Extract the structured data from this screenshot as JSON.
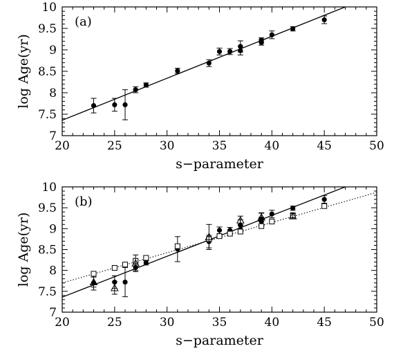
{
  "chart_data": [
    {
      "type": "scatter",
      "panel_label": "(a)",
      "xlabel": "s−parameter",
      "ylabel": "log Age(yr)",
      "xlim": [
        20,
        50
      ],
      "ylim": [
        7,
        10
      ],
      "xticks": [
        "20",
        "25",
        "30",
        "35",
        "40",
        "45",
        "50"
      ],
      "yticks": [
        "7",
        "7.5",
        "8",
        "8.5",
        "9",
        "9.5",
        "10"
      ],
      "series": [
        {
          "marker": "filled-circle",
          "points": [
            {
              "x": 23,
              "y": 7.7,
              "err": 0.17
            },
            {
              "x": 25,
              "y": 7.72,
              "err": 0.15
            },
            {
              "x": 26,
              "y": 7.72,
              "err": 0.35
            },
            {
              "x": 27,
              "y": 8.07,
              "err": 0.07
            },
            {
              "x": 28,
              "y": 8.18,
              "err": 0.05
            },
            {
              "x": 31,
              "y": 8.51,
              "err": 0.06
            },
            {
              "x": 34,
              "y": 8.69,
              "err": 0.08
            },
            {
              "x": 35,
              "y": 8.96,
              "err": 0.08
            },
            {
              "x": 36,
              "y": 8.96,
              "err": 0.07
            },
            {
              "x": 37,
              "y": 9.08,
              "err": 0.13
            },
            {
              "x": 37,
              "y": 8.98,
              "err": 0.1
            },
            {
              "x": 39,
              "y": 9.17,
              "err": 0.06
            },
            {
              "x": 39,
              "y": 9.23,
              "err": 0.05
            },
            {
              "x": 40,
              "y": 9.35,
              "err": 0.09
            },
            {
              "x": 42,
              "y": 9.49,
              "err": 0.05
            },
            {
              "x": 45,
              "y": 9.7,
              "err": 0.09
            }
          ]
        }
      ],
      "lines": [
        {
          "style": "solid",
          "x": [
            20,
            47
          ],
          "y": [
            7.36,
            10.0
          ]
        }
      ]
    },
    {
      "type": "scatter",
      "panel_label": "(b)",
      "xlabel": "s−parameter",
      "ylabel": "log Age(yr)",
      "xlim": [
        20,
        50
      ],
      "ylim": [
        7,
        10
      ],
      "xticks": [
        "20",
        "25",
        "30",
        "35",
        "40",
        "45",
        "50"
      ],
      "yticks": [
        "7",
        "7.5",
        "8",
        "8.5",
        "9",
        "9.5",
        "10"
      ],
      "series": [
        {
          "marker": "filled-circle",
          "points": [
            {
              "x": 23,
              "y": 7.7,
              "err": 0.17
            },
            {
              "x": 25,
              "y": 7.72,
              "err": 0.15
            },
            {
              "x": 26,
              "y": 7.72,
              "err": 0.35
            },
            {
              "x": 27,
              "y": 8.07,
              "err": 0.07
            },
            {
              "x": 28,
              "y": 8.18,
              "err": 0.05
            },
            {
              "x": 31,
              "y": 8.51,
              "err": 0.3
            },
            {
              "x": 34,
              "y": 8.69,
              "err": 0.15
            },
            {
              "x": 35,
              "y": 8.96,
              "err": 0.08
            },
            {
              "x": 36,
              "y": 8.96,
              "err": 0.07
            },
            {
              "x": 37,
              "y": 9.08,
              "err": 0.13
            },
            {
              "x": 37,
              "y": 8.98,
              "err": 0.1
            },
            {
              "x": 39,
              "y": 9.17,
              "err": 0.1
            },
            {
              "x": 39,
              "y": 9.23,
              "err": 0.15
            },
            {
              "x": 40,
              "y": 9.35,
              "err": 0.09
            },
            {
              "x": 42,
              "y": 9.49,
              "err": 0.05
            },
            {
              "x": 45,
              "y": 9.7,
              "err": 0.09
            }
          ]
        },
        {
          "marker": "open-square",
          "points": [
            {
              "x": 23,
              "y": 7.92,
              "err": 0.0
            },
            {
              "x": 25,
              "y": 8.06,
              "err": 0.0
            },
            {
              "x": 26,
              "y": 8.14,
              "err": 0.0
            },
            {
              "x": 27,
              "y": 8.23,
              "err": 0.0
            },
            {
              "x": 28,
              "y": 8.3,
              "err": 0.0
            },
            {
              "x": 31,
              "y": 8.58,
              "err": 0.0
            },
            {
              "x": 34,
              "y": 8.75,
              "err": 0.0
            },
            {
              "x": 35,
              "y": 8.82,
              "err": 0.0
            },
            {
              "x": 36,
              "y": 8.88,
              "err": 0.0
            },
            {
              "x": 37,
              "y": 8.93,
              "err": 0.0
            },
            {
              "x": 39,
              "y": 9.06,
              "err": 0.0
            },
            {
              "x": 40,
              "y": 9.17,
              "err": 0.0
            },
            {
              "x": 42,
              "y": 9.32,
              "err": 0.0
            },
            {
              "x": 45,
              "y": 9.54,
              "err": 0.0
            }
          ]
        },
        {
          "marker": "open-triangle",
          "points": [
            {
              "x": 23,
              "y": 7.72,
              "err": 0.12
            },
            {
              "x": 25,
              "y": 7.58,
              "err": 0.15
            },
            {
              "x": 27,
              "y": 8.17,
              "err": 0.2
            },
            {
              "x": 34,
              "y": 8.8,
              "err": 0.3
            },
            {
              "x": 37,
              "y": 9.2,
              "err": 0.1
            },
            {
              "x": 39,
              "y": 9.27,
              "err": 0.1
            },
            {
              "x": 42,
              "y": 9.3,
              "err": 0.06
            }
          ]
        }
      ],
      "lines": [
        {
          "style": "solid",
          "x": [
            20,
            47
          ],
          "y": [
            7.36,
            10.0
          ]
        },
        {
          "style": "dotted",
          "x": [
            20,
            50
          ],
          "y": [
            7.7,
            9.87
          ]
        }
      ]
    }
  ]
}
